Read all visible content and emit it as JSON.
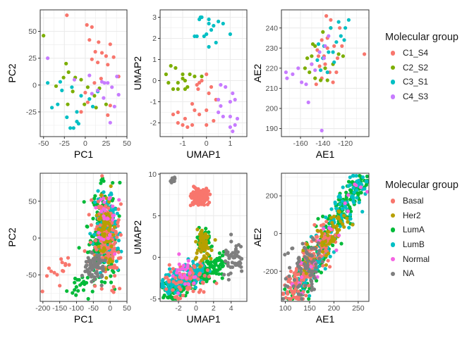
{
  "colors": {
    "C1_S4": "#F8766D",
    "C2_S2": "#7CAE00",
    "C3_S1": "#00BFC4",
    "C4_S3": "#C77CFF",
    "Basal": "#F8766D",
    "Her2": "#B79F00",
    "LumA": "#00BA38",
    "LumB": "#00BFC4",
    "Normal": "#F564E3",
    "NA": "#7F7F7F",
    "grid": "#EBEBEB",
    "panel_border": "#333333",
    "tick_text": "#4D4D4D"
  },
  "legends": [
    {
      "title": "Molecular group",
      "items": [
        {
          "label": "C1_S4",
          "color": "#F8766D"
        },
        {
          "label": "C2_S2",
          "color": "#7CAE00"
        },
        {
          "label": "C3_S1",
          "color": "#00BFC4"
        },
        {
          "label": "C4_S3",
          "color": "#C77CFF"
        }
      ]
    },
    {
      "title": "Molecular group",
      "items": [
        {
          "label": "Basal",
          "color": "#F8766D"
        },
        {
          "label": "Her2",
          "color": "#B79F00"
        },
        {
          "label": "LumA",
          "color": "#00BA38"
        },
        {
          "label": "LumB",
          "color": "#00BFC4"
        },
        {
          "label": "Normal",
          "color": "#F564E3"
        },
        {
          "label": "NA",
          "color": "#7F7F7F"
        }
      ]
    }
  ],
  "chart_data": [
    {
      "type": "scatter",
      "xlabel": "PC1",
      "ylabel": "PC2",
      "grid": true,
      "xlim": [
        -54,
        50
      ],
      "ylim": [
        -48,
        70
      ],
      "xticks": [
        -50,
        -25,
        0,
        25,
        50
      ],
      "yticks": [
        -25,
        0,
        25,
        50
      ],
      "series": [
        {
          "group": "C1_S4",
          "points": [
            [
              -22,
              65
            ],
            [
              2,
              56
            ],
            [
              8,
              54
            ],
            [
              5,
              42
            ],
            [
              16,
              40
            ],
            [
              30,
              38
            ],
            [
              12,
              31
            ],
            [
              20,
              30
            ],
            [
              25,
              27
            ],
            [
              34,
              26
            ],
            [
              8,
              24
            ],
            [
              15,
              21
            ],
            [
              27,
              19
            ],
            [
              40,
              8
            ],
            [
              11,
              2
            ],
            [
              19,
              6
            ],
            [
              3,
              -16
            ],
            [
              30,
              -19
            ],
            [
              -5,
              -25
            ],
            [
              0,
              -7
            ],
            [
              27,
              -28
            ]
          ]
        },
        {
          "group": "C2_S2",
          "points": [
            [
              -50,
              46
            ],
            [
              -23,
              20
            ],
            [
              -20,
              12
            ],
            [
              -26,
              7
            ],
            [
              -12,
              7
            ],
            [
              -5,
              5
            ],
            [
              -35,
              -1
            ],
            [
              -15,
              -6
            ],
            [
              3,
              -2
            ],
            [
              11,
              -10
            ],
            [
              -1,
              -18
            ],
            [
              -21,
              -18
            ],
            [
              25,
              -18
            ],
            [
              13,
              -21
            ],
            [
              17,
              -3
            ]
          ]
        },
        {
          "group": "C3_S1",
          "points": [
            [
              -40,
              -21
            ],
            [
              -33,
              -18
            ],
            [
              -28,
              -5
            ],
            [
              -16,
              -2
            ],
            [
              -5,
              -10
            ],
            [
              -45,
              2
            ],
            [
              -30,
              3
            ],
            [
              -10,
              -25
            ],
            [
              -14,
              -40
            ],
            [
              -10,
              -34
            ],
            [
              -8,
              -36
            ],
            [
              -18,
              -40
            ],
            [
              9,
              -20
            ],
            [
              15,
              -6
            ],
            [
              -22,
              -30
            ],
            [
              5,
              -13
            ]
          ]
        },
        {
          "group": "C4_S3",
          "points": [
            [
              -45,
              25
            ],
            [
              -13,
              5
            ],
            [
              5,
              9
            ],
            [
              20,
              3
            ],
            [
              23,
              2
            ],
            [
              27,
              2
            ],
            [
              15,
              -5
            ],
            [
              8,
              -8
            ],
            [
              22,
              -12
            ],
            [
              32,
              -2
            ],
            [
              35,
              -20
            ],
            [
              30,
              -35
            ],
            [
              38,
              8
            ],
            [
              40,
              -9
            ]
          ]
        }
      ]
    },
    {
      "type": "scatter",
      "xlabel": "UMAP1",
      "ylabel": "UMAP2",
      "grid": true,
      "xlim": [
        -1.95,
        1.7
      ],
      "ylim": [
        -2.65,
        3.35
      ],
      "xticks": [
        -1,
        0,
        1
      ],
      "yticks": [
        -2,
        -1,
        0,
        1,
        2,
        3
      ],
      "series": [
        {
          "group": "C1_S4",
          "points": [
            [
              -0.3,
              -0.1
            ],
            [
              -0.2,
              0.0
            ],
            [
              0.0,
              0.3
            ],
            [
              0.1,
              -0.6
            ],
            [
              -0.4,
              -0.2
            ],
            [
              -0.35,
              -0.4
            ],
            [
              0.4,
              -0.9
            ],
            [
              -0.6,
              -1.1
            ],
            [
              -0.5,
              -1.4
            ],
            [
              -1.2,
              -1.5
            ],
            [
              -0.9,
              -1.8
            ],
            [
              -1.4,
              -1.6
            ],
            [
              -1.0,
              -2.1
            ],
            [
              -0.8,
              -2.2
            ],
            [
              -0.6,
              -2.1
            ],
            [
              -0.3,
              -1.6
            ],
            [
              0.0,
              -2.1
            ],
            [
              0.3,
              -1.9
            ],
            [
              0.0,
              -1.4
            ],
            [
              0.2,
              -0.3
            ],
            [
              -1.2,
              -2.0
            ]
          ]
        },
        {
          "group": "C2_S2",
          "points": [
            [
              -1.7,
              0.3
            ],
            [
              -1.6,
              -0.1
            ],
            [
              -1.4,
              -0.4
            ],
            [
              -1.2,
              -0.4
            ],
            [
              -1.0,
              0.1
            ],
            [
              -0.9,
              0.0
            ],
            [
              -0.8,
              -0.3
            ],
            [
              -0.7,
              0.3
            ],
            [
              -1.5,
              0.7
            ],
            [
              -1.2,
              -0.1
            ],
            [
              -0.5,
              0.2
            ],
            [
              -0.2,
              0.2
            ],
            [
              -1.0,
              0.3
            ],
            [
              -1.3,
              0.6
            ],
            [
              -0.9,
              -0.4
            ]
          ]
        },
        {
          "group": "C3_S1",
          "points": [
            [
              -0.3,
              2.9
            ],
            [
              -0.2,
              3.0
            ],
            [
              0.1,
              2.9
            ],
            [
              0.1,
              2.7
            ],
            [
              0.3,
              2.6
            ],
            [
              0.5,
              2.8
            ],
            [
              0.7,
              2.7
            ],
            [
              -0.5,
              2.1
            ],
            [
              -0.4,
              2.1
            ],
            [
              -0.1,
              2.1
            ],
            [
              0.0,
              2.2
            ],
            [
              0.2,
              2.4
            ],
            [
              0.1,
              1.6
            ],
            [
              0.4,
              1.8
            ],
            [
              1.0,
              2.2
            ],
            [
              -0.25,
              3.0
            ]
          ]
        },
        {
          "group": "C4_S3",
          "points": [
            [
              0.8,
              -0.3
            ],
            [
              1.1,
              -0.6
            ],
            [
              1.2,
              -0.9
            ],
            [
              1.0,
              -1.0
            ],
            [
              0.6,
              -1.2
            ],
            [
              0.5,
              -1.5
            ],
            [
              0.7,
              -1.7
            ],
            [
              1.0,
              -1.7
            ],
            [
              1.3,
              -1.8
            ],
            [
              1.2,
              -2.1
            ],
            [
              1.0,
              -2.2
            ],
            [
              1.1,
              -2.4
            ],
            [
              0.5,
              -0.9
            ],
            [
              0.6,
              -0.2
            ]
          ]
        }
      ]
    },
    {
      "type": "scatter",
      "xlabel": "AE1",
      "ylabel": "AE2",
      "grid": true,
      "xlim": [
        -177,
        -99
      ],
      "ylim": [
        186,
        249
      ],
      "xticks": [
        -160,
        -140,
        -120
      ],
      "yticks": [
        190,
        200,
        210,
        220,
        230,
        240
      ],
      "series": [
        {
          "group": "C1_S4",
          "points": [
            [
              -137,
              246
            ],
            [
              -133,
              244
            ],
            [
              -125,
              240
            ],
            [
              -141,
              234
            ],
            [
              -136,
              235
            ],
            [
              -130,
              231
            ],
            [
              -145,
              229
            ],
            [
              -139,
              226
            ],
            [
              -127,
              225
            ],
            [
              -150,
              222
            ],
            [
              -143,
              221
            ],
            [
              -134,
              218
            ],
            [
              -141,
              215
            ],
            [
              -146,
              212
            ],
            [
              -131,
              213
            ],
            [
              -123,
              231
            ],
            [
              -103,
              227
            ],
            [
              -128,
              218
            ],
            [
              -138,
              222
            ],
            [
              -144,
              226
            ],
            [
              -136,
              230
            ]
          ]
        },
        {
          "group": "C2_S2",
          "points": [
            [
              -149,
              232
            ],
            [
              -154,
              225
            ],
            [
              -156,
              220
            ],
            [
              -152,
              218
            ],
            [
              -147,
              215
            ],
            [
              -142,
              214
            ],
            [
              -136,
              214
            ],
            [
              -126,
              227
            ],
            [
              -122,
              226
            ],
            [
              -133,
              240
            ],
            [
              -140,
              238
            ],
            [
              -147,
              231
            ],
            [
              -150,
              226
            ],
            [
              -138,
              220
            ],
            [
              -131,
              222
            ]
          ]
        },
        {
          "group": "C3_S1",
          "points": [
            [
              -126,
              243
            ],
            [
              -120,
              240
            ],
            [
              -133,
              240
            ],
            [
              -144,
              232
            ],
            [
              -139,
              231
            ],
            [
              -135,
              228
            ],
            [
              -140,
              225
            ],
            [
              -145,
              224
            ],
            [
              -130,
              223
            ],
            [
              -121,
              234
            ],
            [
              -136,
              218
            ],
            [
              -128,
              233
            ],
            [
              -124,
              236
            ],
            [
              -142,
              219
            ],
            [
              -131,
              228
            ],
            [
              -117,
              244
            ]
          ]
        },
        {
          "group": "C4_S3",
          "points": [
            [
              -173,
              218
            ],
            [
              -172,
              215
            ],
            [
              -167,
              217
            ],
            [
              -162,
              220
            ],
            [
              -159,
              213
            ],
            [
              -155,
              212
            ],
            [
              -150,
              222
            ],
            [
              -147,
              219
            ],
            [
              -143,
              228
            ],
            [
              -139,
              225
            ],
            [
              -138,
              231
            ],
            [
              -135,
              236
            ],
            [
              -153,
              203
            ],
            [
              -141,
              189
            ]
          ]
        }
      ]
    },
    {
      "type": "scatter",
      "xlabel": "PC1",
      "ylabel": "PC2",
      "grid": true,
      "xlim": [
        -208,
        50
      ],
      "ylim": [
        -86,
        88
      ],
      "xticks": [
        -200,
        -150,
        -100,
        -50,
        0,
        50
      ],
      "yticks": [
        -50,
        0,
        50
      ],
      "generated_cloud": true,
      "series_counts": {
        "LumA": 220,
        "LumB": 130,
        "Basal": 160,
        "Her2": 60,
        "Normal": 25,
        "NA": 70
      }
    },
    {
      "type": "scatter",
      "xlabel": "UMAP1",
      "ylabel": "UMAP2",
      "grid": true,
      "xlim": [
        -4.1,
        5.8
      ],
      "ylim": [
        -5.3,
        10.1
      ],
      "xticks": [
        -2,
        0,
        2,
        4
      ],
      "yticks": [
        -5,
        0,
        5,
        10
      ],
      "generated_cloud": true,
      "series_counts": {
        "LumA": 280,
        "LumB": 150,
        "Basal": 200,
        "Her2": 60,
        "Normal": 25,
        "NA": 70
      }
    },
    {
      "type": "scatter",
      "xlabel": "AE1",
      "ylabel": "AE2",
      "grid": true,
      "xlim": [
        92,
        272
      ],
      "ylim": [
        -360,
        320
      ],
      "xticks": [
        100,
        150,
        200,
        250
      ],
      "yticks": [
        -200,
        0,
        200
      ],
      "generated_cloud": true,
      "series_counts": {
        "LumA": 260,
        "LumB": 140,
        "Basal": 160,
        "Her2": 60,
        "Normal": 25,
        "NA": 70
      }
    }
  ]
}
